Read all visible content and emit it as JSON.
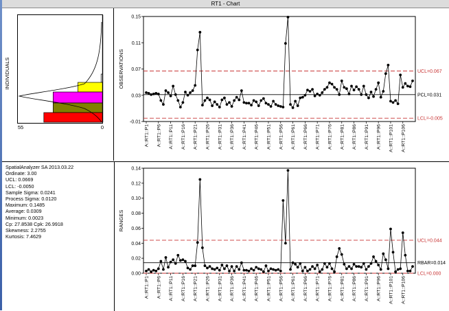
{
  "window": {
    "title": "RT1 - Chart"
  },
  "histogram": {
    "ylabel": "INDIVIDUALS",
    "x_left_label": "55",
    "x_right_label": "0",
    "bins": [
      {
        "color": "#ffffff",
        "count": 1
      },
      {
        "color": "#ffff00",
        "count": 16
      },
      {
        "color": "#ff00ff",
        "count": 32
      },
      {
        "color": "#808000",
        "count": 32
      },
      {
        "color": "#ff0000",
        "count": 38
      }
    ]
  },
  "stats": {
    "lines": [
      "SpatialAnalyzer SA 2013.03.22",
      "Ordinate: 3.00",
      "UCL: 0.0669",
      "LCL: -0.0050",
      "Sample Sigma: 0.0241",
      "Process Sigma: 0.0120",
      "Maximum: 0.1485",
      "Average: 0.0309",
      "Minimum: 0.0023",
      "Cp: 27.8538 Cpk: 26.9918",
      "Skewness: 2.2755",
      "Kurtosis: 7.4629"
    ]
  },
  "chart_data": [
    {
      "type": "line",
      "ylabel": "OBSERVATIONS",
      "ylim": [
        -0.01,
        0.15
      ],
      "yticks": [
        "0.15",
        "0.11",
        "0.07",
        "0.03",
        "-0.01"
      ],
      "ytick_values": [
        0.15,
        0.11,
        0.07,
        0.03,
        -0.01
      ],
      "center": {
        "label": "PCL=0.031",
        "value": 0.031
      },
      "ucl": {
        "label": "UCL=0.067",
        "value": 0.067
      },
      "lcl": {
        "label": "LCL=-0.005",
        "value": -0.005
      },
      "xtick_labels": [
        "A::RT1::P1",
        "A::RT1::P6",
        "A::RT1::P11",
        "A::RT1::P16",
        "A::RT1::P21",
        "A::RT1::P26",
        "A::RT1::P31",
        "A::RT1::P36",
        "A::RT1::P41",
        "A::RT1::P46",
        "A::RT1::P51",
        "A::RT1::P56",
        "A::RT1::P61",
        "A::RT1::P66",
        "A::RT1::P71",
        "A::RT1::P76",
        "A::RT1::P81",
        "A::RT1::P86",
        "A::RT1::P91",
        "A::RT1::P96",
        "A::RT1::P101",
        "A::RT1::P106"
      ],
      "values": [
        0.034,
        0.033,
        0.031,
        0.032,
        0.033,
        0.032,
        0.022,
        0.016,
        0.037,
        0.034,
        0.029,
        0.044,
        0.031,
        0.022,
        0.012,
        0.019,
        0.035,
        0.03,
        0.034,
        0.037,
        0.045,
        0.099,
        0.126,
        0.015,
        0.022,
        0.026,
        0.023,
        0.014,
        0.02,
        0.016,
        0.012,
        0.023,
        0.026,
        0.016,
        0.019,
        0.013,
        0.022,
        0.027,
        0.023,
        0.037,
        0.019,
        0.018,
        0.018,
        0.015,
        0.022,
        0.02,
        0.014,
        0.022,
        0.025,
        0.018,
        0.016,
        0.013,
        0.021,
        0.016,
        0.014,
        0.013,
        0.012,
        0.109,
        0.149,
        0.016,
        0.011,
        0.021,
        0.014,
        0.026,
        0.027,
        0.03,
        0.038,
        0.036,
        0.039,
        0.029,
        0.032,
        0.03,
        0.034,
        0.039,
        0.042,
        0.049,
        0.047,
        0.042,
        0.039,
        0.031,
        0.052,
        0.042,
        0.04,
        0.032,
        0.044,
        0.038,
        0.043,
        0.039,
        0.031,
        0.044,
        0.031,
        0.026,
        0.035,
        0.028,
        0.039,
        0.049,
        0.027,
        0.036,
        0.063,
        0.076,
        0.021,
        0.019,
        0.022,
        0.017,
        0.061,
        0.042,
        0.048,
        0.044,
        0.043,
        0.052
      ]
    },
    {
      "type": "line",
      "ylabel": "RANGES",
      "ylim": [
        0.0,
        0.14
      ],
      "yticks": [
        "0.14",
        "0.12",
        "0.10",
        "0.08",
        "0.06",
        "0.04",
        "0.02",
        "0.00"
      ],
      "ytick_values": [
        0.14,
        0.12,
        0.1,
        0.08,
        0.06,
        0.04,
        0.02,
        0.0
      ],
      "center": {
        "label": "RBAR=0.014",
        "value": 0.014
      },
      "ucl": {
        "label": "UCL=0.044",
        "value": 0.044
      },
      "lcl": {
        "label": "LCL=0.000",
        "value": 0.0
      },
      "xtick_labels": [
        "A::RT1::P1",
        "A::RT1::P6",
        "A::RT1::P11",
        "A::RT1::P16",
        "A::RT1::P21",
        "A::RT1::P26",
        "A::RT1::P31",
        "A::RT1::P36",
        "A::RT1::P41",
        "A::RT1::P46",
        "A::RT1::P51",
        "A::RT1::P56",
        "A::RT1::P61",
        "A::RT1::P66",
        "A::RT1::P71",
        "A::RT1::P76",
        "A::RT1::P81",
        "A::RT1::P86",
        "A::RT1::P91",
        "A::RT1::P96",
        "A::RT1::P101",
        "A::RT1::P106"
      ],
      "values": [
        0.003,
        0.005,
        0.002,
        0.004,
        0.003,
        0.006,
        0.016,
        0.005,
        0.021,
        0.008,
        0.015,
        0.018,
        0.013,
        0.024,
        0.017,
        0.018,
        0.016,
        0.007,
        0.005,
        0.01,
        0.01,
        0.041,
        0.125,
        0.034,
        0.01,
        0.007,
        0.009,
        0.006,
        0.005,
        0.007,
        0.004,
        0.011,
        0.006,
        0.01,
        0.003,
        0.009,
        0.003,
        0.009,
        0.005,
        0.014,
        0.004,
        0.004,
        0.003,
        0.006,
        0.004,
        0.008,
        0.006,
        0.005,
        0.002,
        0.01,
        0.003,
        0.006,
        0.005,
        0.004,
        0.005,
        0.003,
        0.097,
        0.04,
        0.137,
        0.005,
        0.014,
        0.012,
        0.008,
        0.013,
        0.003,
        0.008,
        0.003,
        0.005,
        0.009,
        0.006,
        0.011,
        0.002,
        0.005,
        0.013,
        0.008,
        0.013,
        0.006,
        0.002,
        0.022,
        0.033,
        0.025,
        0.012,
        0.006,
        0.009,
        0.006,
        0.012,
        0.009,
        0.009,
        0.008,
        0.013,
        0.005,
        0.009,
        0.013,
        0.022,
        0.016,
        0.011,
        0.005,
        0.026,
        0.018,
        0.006,
        0.059,
        0.028,
        0.002,
        0.005,
        0.006,
        0.054,
        0.024,
        0.003,
        0.003,
        0.009
      ]
    }
  ]
}
